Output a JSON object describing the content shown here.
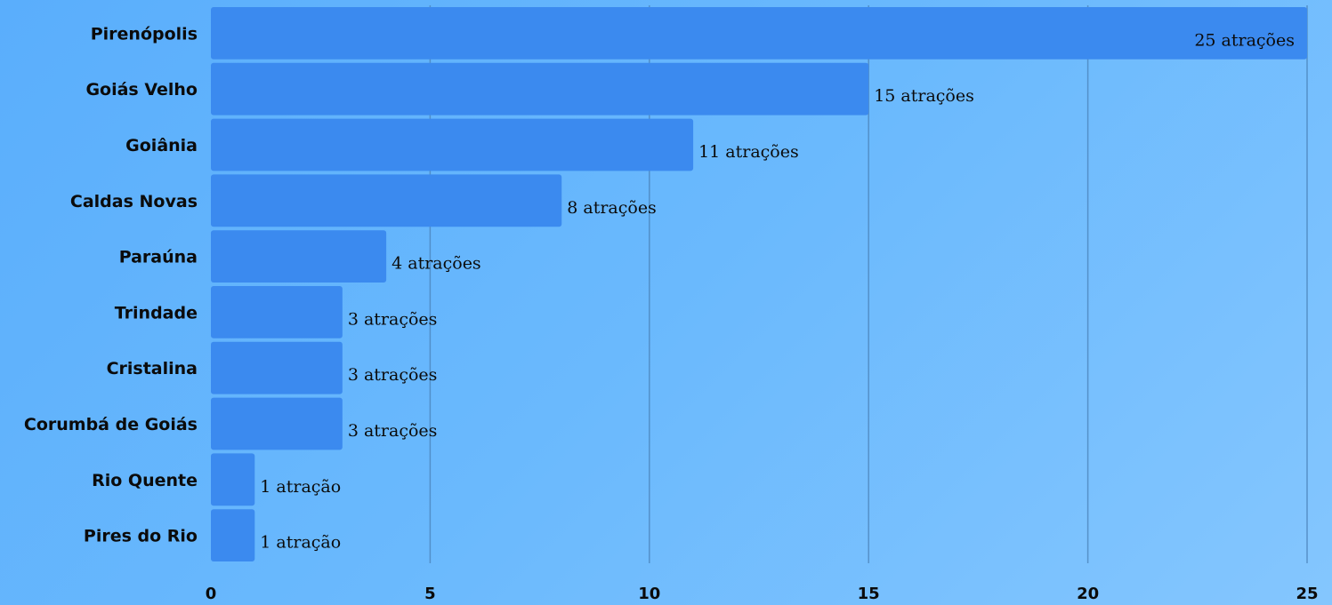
{
  "chart_data": {
    "type": "bar",
    "orientation": "horizontal",
    "categories": [
      "Pirenópolis",
      "Goiás Velho",
      "Goiânia",
      "Caldas Novas",
      "Paraúna",
      "Trindade",
      "Cristalina",
      "Corumbá de Goiás",
      "Rio Quente",
      "Pires do Rio"
    ],
    "values": [
      25,
      15,
      11,
      8,
      4,
      3,
      3,
      3,
      1,
      1
    ],
    "data_labels": [
      "25 atrações",
      "15 atrações",
      "11 atrações",
      "8 atrações",
      "4 atrações",
      "3 atrações",
      "3 atrações",
      "3 atrações",
      "1 atração",
      "1 atração"
    ],
    "xlim": [
      0,
      25
    ],
    "x_ticks": [
      "0",
      "5",
      "10",
      "15",
      "20",
      "25"
    ],
    "grid": true,
    "bar_color": "#3b8aef",
    "title": "",
    "xlabel": "",
    "ylabel": ""
  }
}
